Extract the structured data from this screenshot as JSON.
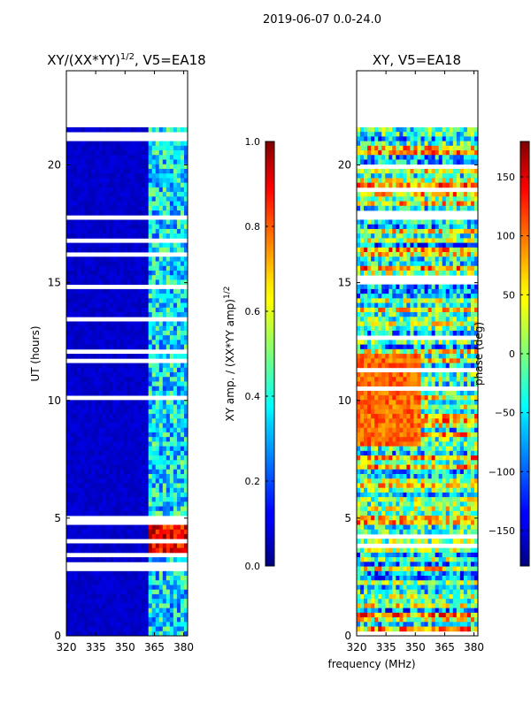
{
  "suptitle": "2019-06-07 0.0-24.0",
  "chart_data": [
    {
      "type": "heatmap",
      "title": "XY/(XX*YY)",
      "title_sup": "1/2",
      "title_suffix": ", V5=EA18",
      "ylabel": "UT (hours)",
      "x_ticks": [
        "320",
        "335",
        "350",
        "365",
        "380"
      ],
      "x_tick_values": [
        320,
        335,
        350,
        365,
        380
      ],
      "y_ticks": [
        "0",
        "5",
        "10",
        "15",
        "20"
      ],
      "y_tick_values": [
        0,
        5,
        10,
        15,
        20
      ],
      "xlim": [
        320,
        382
      ],
      "ylim": [
        0,
        24
      ],
      "data_end_hour": 21.6,
      "colorbar": {
        "label": "XY amp. / (XX*YY amp)",
        "label_sup": "1/2",
        "ticks": [
          "0.0",
          "0.2",
          "0.4",
          "0.6",
          "0.8",
          "1.0"
        ],
        "tick_values": [
          0.0,
          0.2,
          0.4,
          0.6,
          0.8,
          1.0
        ],
        "range": [
          0.0,
          1.0
        ],
        "colormap": "jet"
      }
    },
    {
      "type": "heatmap",
      "title": "XY, V5=EA18",
      "xlabel": "frequency (MHz)",
      "x_ticks": [
        "320",
        "335",
        "350",
        "365",
        "380"
      ],
      "x_tick_values": [
        320,
        335,
        350,
        365,
        380
      ],
      "y_ticks": [
        "0",
        "5",
        "10",
        "15",
        "20"
      ],
      "y_tick_values": [
        0,
        5,
        10,
        15,
        20
      ],
      "xlim": [
        320,
        382
      ],
      "ylim": [
        0,
        24
      ],
      "data_end_hour": 21.6,
      "colorbar": {
        "label": "phase (deg)",
        "ticks": [
          "−150",
          "−100",
          "−50",
          "0",
          "50",
          "100",
          "150"
        ],
        "tick_values": [
          -150,
          -100,
          -50,
          0,
          50,
          100,
          150
        ],
        "range": [
          -180,
          180
        ],
        "colormap": "jet"
      }
    }
  ]
}
